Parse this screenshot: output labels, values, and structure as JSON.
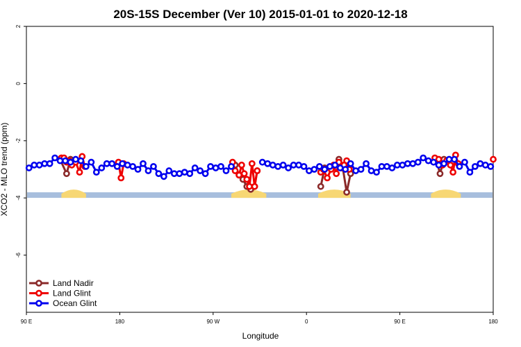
{
  "chart_data": {
    "type": "line",
    "title": "20S-15S December (Ver 10)   2015-01-01 to 2020-12-18",
    "xlabel": "Longitude",
    "ylabel": "XCO2 - MLO trend (ppm)",
    "xlim": [
      0,
      360
    ],
    "ylim": [
      -8,
      2
    ],
    "x_ticks": [
      {
        "value": 0,
        "label": "90 E"
      },
      {
        "value": 72,
        "label": "180"
      },
      {
        "value": 144,
        "label": "90 W"
      },
      {
        "value": 216,
        "label": "0"
      },
      {
        "value": 288,
        "label": "90 E"
      },
      {
        "value": 360,
        "label": "180"
      }
    ],
    "y_ticks": [
      2,
      0,
      -2,
      -4,
      -6
    ],
    "legend_position": "bottom-left",
    "surface_band": {
      "y": -3.9,
      "ocean_color": "#a7bedd",
      "land_color": "#f7d774",
      "land_segments": [
        [
          27,
          46
        ],
        [
          158,
          185
        ],
        [
          225,
          250
        ],
        [
          312,
          335
        ]
      ]
    },
    "series": [
      {
        "name": "Land Nadir",
        "color": "#8b2a2a",
        "segments": [
          [
            [
              26,
              -2.65
            ],
            [
              31,
              -3.15
            ],
            [
              34,
              -2.65
            ]
          ],
          [
            [
              161,
              -2.85
            ],
            [
              164,
              -3.2
            ],
            [
              167,
              -3.35
            ],
            [
              170,
              -3.6
            ],
            [
              173,
              -3.7
            ],
            [
              176,
              -3.6
            ],
            [
              178,
              -3.05
            ]
          ],
          [
            [
              227,
              -3.6
            ],
            [
              230,
              -2.95
            ]
          ],
          [
            [
              241,
              -2.65
            ],
            [
              244,
              -2.95
            ],
            [
              247,
              -3.8
            ],
            [
              250,
              -3.15
            ]
          ],
          [
            [
              316,
              -2.65
            ],
            [
              319,
              -3.15
            ],
            [
              322,
              -2.65
            ]
          ]
        ]
      },
      {
        "name": "Land Glint",
        "color": "#ee0000",
        "segments": [
          [
            [
              27,
              -2.6
            ],
            [
              29,
              -2.6
            ],
            [
              31,
              -2.75
            ],
            [
              33,
              -2.7
            ],
            [
              35,
              -2.85
            ],
            [
              38,
              -2.75
            ],
            [
              41,
              -3.1
            ],
            [
              43,
              -2.55
            ],
            [
              45,
              -2.9
            ]
          ],
          [
            [
              71,
              -2.75
            ],
            [
              73,
              -3.3
            ],
            [
              75,
              -2.8
            ]
          ],
          [
            [
              159,
              -2.75
            ],
            [
              161,
              -3.05
            ],
            [
              164,
              -3.2
            ],
            [
              166,
              -2.85
            ],
            [
              168,
              -3.15
            ],
            [
              170,
              -3.35
            ],
            [
              172,
              -3.6
            ],
            [
              174,
              -2.8
            ],
            [
              176,
              -3.6
            ],
            [
              178,
              -3.05
            ]
          ],
          [
            [
              227,
              -3.1
            ],
            [
              229,
              -3.0
            ],
            [
              232,
              -3.3
            ],
            [
              235,
              -3.0
            ],
            [
              237,
              -2.85
            ],
            [
              239,
              -3.15
            ],
            [
              241,
              -2.75
            ],
            [
              243,
              -2.95
            ],
            [
              245,
              -2.85
            ],
            [
              247,
              -2.7
            ],
            [
              249,
              -3.0
            ]
          ],
          [
            [
              315,
              -2.6
            ],
            [
              318,
              -2.65
            ],
            [
              321,
              -2.85
            ],
            [
              324,
              -2.7
            ],
            [
              327,
              -2.85
            ],
            [
              329,
              -3.1
            ],
            [
              331,
              -2.5
            ],
            [
              333,
              -2.8
            ]
          ],
          [
            [
              360,
              -2.65
            ]
          ]
        ]
      },
      {
        "name": "Ocean Glint",
        "color": "#0000ee",
        "segments": [
          [
            [
              2,
              -2.95
            ],
            [
              6,
              -2.85
            ],
            [
              10,
              -2.85
            ],
            [
              14,
              -2.8
            ],
            [
              18,
              -2.8
            ],
            [
              22,
              -2.6
            ],
            [
              26,
              -2.7
            ],
            [
              30,
              -2.7
            ],
            [
              34,
              -2.75
            ],
            [
              38,
              -2.65
            ],
            [
              42,
              -2.7
            ],
            [
              46,
              -2.9
            ],
            [
              50,
              -2.75
            ],
            [
              54,
              -3.1
            ],
            [
              58,
              -2.95
            ],
            [
              62,
              -2.8
            ],
            [
              66,
              -2.8
            ],
            [
              70,
              -2.9
            ],
            [
              74,
              -2.8
            ],
            [
              78,
              -2.85
            ],
            [
              82,
              -2.9
            ],
            [
              86,
              -3.0
            ],
            [
              90,
              -2.8
            ],
            [
              94,
              -3.05
            ],
            [
              98,
              -2.9
            ],
            [
              102,
              -3.15
            ],
            [
              106,
              -3.25
            ],
            [
              110,
              -3.05
            ],
            [
              114,
              -3.15
            ],
            [
              118,
              -3.15
            ],
            [
              122,
              -3.1
            ],
            [
              126,
              -3.15
            ],
            [
              130,
              -2.95
            ],
            [
              134,
              -3.05
            ],
            [
              138,
              -3.15
            ],
            [
              142,
              -2.9
            ],
            [
              146,
              -2.95
            ],
            [
              150,
              -2.9
            ],
            [
              154,
              -3.05
            ],
            [
              158,
              -2.9
            ]
          ],
          [
            [
              182,
              -2.75
            ],
            [
              186,
              -2.8
            ],
            [
              190,
              -2.85
            ],
            [
              194,
              -2.9
            ],
            [
              198,
              -2.85
            ],
            [
              202,
              -2.95
            ],
            [
              206,
              -2.85
            ],
            [
              210,
              -2.85
            ],
            [
              214,
              -2.9
            ],
            [
              218,
              -3.05
            ],
            [
              222,
              -3.0
            ],
            [
              226,
              -2.9
            ],
            [
              230,
              -3.0
            ],
            [
              234,
              -2.9
            ],
            [
              238,
              -2.85
            ],
            [
              242,
              -2.95
            ],
            [
              246,
              -3.0
            ],
            [
              250,
              -2.8
            ],
            [
              254,
              -3.05
            ],
            [
              258,
              -3.0
            ],
            [
              262,
              -2.8
            ],
            [
              266,
              -3.05
            ],
            [
              270,
              -3.1
            ],
            [
              274,
              -2.9
            ],
            [
              278,
              -2.9
            ],
            [
              282,
              -2.95
            ],
            [
              286,
              -2.85
            ],
            [
              290,
              -2.85
            ],
            [
              294,
              -2.8
            ],
            [
              298,
              -2.8
            ],
            [
              302,
              -2.75
            ],
            [
              306,
              -2.6
            ],
            [
              310,
              -2.7
            ],
            [
              314,
              -2.75
            ],
            [
              318,
              -2.85
            ],
            [
              322,
              -2.8
            ],
            [
              326,
              -2.65
            ],
            [
              330,
              -2.65
            ],
            [
              334,
              -2.9
            ],
            [
              338,
              -2.75
            ],
            [
              342,
              -3.1
            ],
            [
              346,
              -2.9
            ],
            [
              350,
              -2.8
            ],
            [
              354,
              -2.85
            ],
            [
              358,
              -2.9
            ]
          ]
        ]
      }
    ]
  }
}
